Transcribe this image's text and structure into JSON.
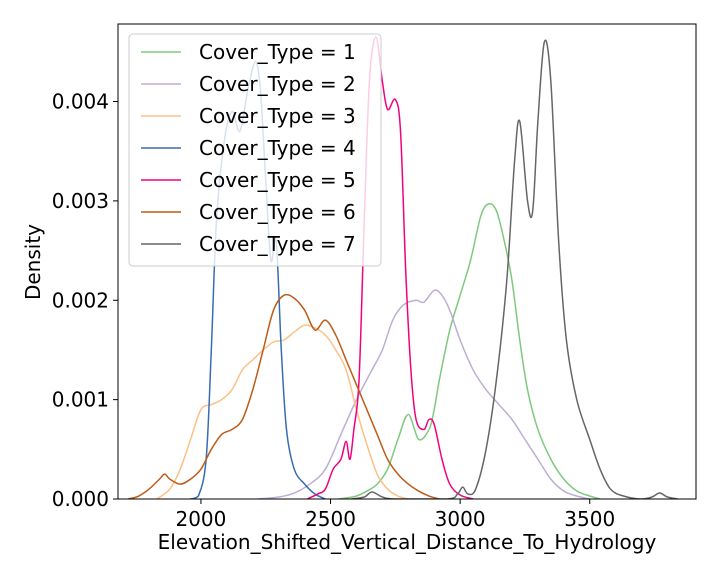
{
  "chart_data": {
    "type": "line",
    "chart_kind": "kde-density",
    "xlabel": "Elevation_Shifted_Vertical_Distance_To_Hydrology",
    "ylabel": "Density",
    "xlim": [
      1680,
      3910
    ],
    "ylim": [
      0,
      0.00478
    ],
    "xticks": [
      2000,
      2500,
      3000,
      3500
    ],
    "yticks": [
      0.0,
      0.001,
      0.002,
      0.003,
      0.004
    ],
    "xtick_labels": [
      "2000",
      "2500",
      "3000",
      "3500"
    ],
    "ytick_labels": [
      "0.000",
      "0.001",
      "0.002",
      "0.003",
      "0.004"
    ],
    "grid": false,
    "legend_position": "top-left",
    "series": [
      {
        "name": "Cover_Type = 1",
        "color": "#7fc97f",
        "points": [
          [
            2530,
            0
          ],
          [
            2560,
            1e-05
          ],
          [
            2600,
            3e-05
          ],
          [
            2640,
            8e-05
          ],
          [
            2680,
            0.00015
          ],
          [
            2720,
            0.0003
          ],
          [
            2760,
            0.0006
          ],
          [
            2800,
            0.00085
          ],
          [
            2840,
            0.0006
          ],
          [
            2880,
            0.0007
          ],
          [
            2900,
            0.0009
          ],
          [
            2920,
            0.0012
          ],
          [
            2960,
            0.0017
          ],
          [
            3000,
            0.00205
          ],
          [
            3040,
            0.0024
          ],
          [
            3080,
            0.00285
          ],
          [
            3110,
            0.00297
          ],
          [
            3140,
            0.0029
          ],
          [
            3170,
            0.0026
          ],
          [
            3200,
            0.0022
          ],
          [
            3230,
            0.0016
          ],
          [
            3260,
            0.0011
          ],
          [
            3300,
            0.0007
          ],
          [
            3350,
            0.0004
          ],
          [
            3400,
            0.0002
          ],
          [
            3450,
            8e-05
          ],
          [
            3500,
            3e-05
          ],
          [
            3540,
            0
          ]
        ]
      },
      {
        "name": "Cover_Type = 2",
        "color": "#beaed4",
        "points": [
          [
            2220,
            0
          ],
          [
            2300,
            2e-05
          ],
          [
            2360,
            6e-05
          ],
          [
            2420,
            0.00015
          ],
          [
            2480,
            0.0003
          ],
          [
            2540,
            0.00065
          ],
          [
            2600,
            0.001
          ],
          [
            2660,
            0.0013
          ],
          [
            2700,
            0.0015
          ],
          [
            2740,
            0.0018
          ],
          [
            2780,
            0.00195
          ],
          [
            2830,
            0.002
          ],
          [
            2860,
            0.00198
          ],
          [
            2900,
            0.0021
          ],
          [
            2930,
            0.00205
          ],
          [
            2960,
            0.0019
          ],
          [
            3000,
            0.0016
          ],
          [
            3050,
            0.0013
          ],
          [
            3100,
            0.0011
          ],
          [
            3150,
            0.00095
          ],
          [
            3200,
            0.0008
          ],
          [
            3250,
            0.0006
          ],
          [
            3300,
            0.0004
          ],
          [
            3350,
            0.0002
          ],
          [
            3400,
            8e-05
          ],
          [
            3450,
            3e-05
          ],
          [
            3500,
            0
          ]
        ]
      },
      {
        "name": "Cover_Type = 3",
        "color": "#fdc086",
        "points": [
          [
            1830,
            0
          ],
          [
            1880,
            0.0001
          ],
          [
            1920,
            0.0003
          ],
          [
            1960,
            0.0006
          ],
          [
            2000,
            0.0009
          ],
          [
            2040,
            0.00095
          ],
          [
            2080,
            0.001
          ],
          [
            2120,
            0.0011
          ],
          [
            2160,
            0.0013
          ],
          [
            2200,
            0.0014
          ],
          [
            2240,
            0.0015
          ],
          [
            2280,
            0.00158
          ],
          [
            2320,
            0.0016
          ],
          [
            2360,
            0.00168
          ],
          [
            2400,
            0.00175
          ],
          [
            2440,
            0.00172
          ],
          [
            2480,
            0.00165
          ],
          [
            2520,
            0.0015
          ],
          [
            2560,
            0.0013
          ],
          [
            2600,
            0.0009
          ],
          [
            2640,
            0.00055
          ],
          [
            2680,
            0.00025
          ],
          [
            2720,
            0.0001
          ],
          [
            2760,
            3e-05
          ],
          [
            2800,
            0
          ]
        ]
      },
      {
        "name": "Cover_Type = 4",
        "color": "#386cb0",
        "points": [
          [
            1960,
            0
          ],
          [
            1990,
            3e-05
          ],
          [
            2020,
            0.0004
          ],
          [
            2040,
            0.0015
          ],
          [
            2060,
            0.0028
          ],
          [
            2090,
            0.0036
          ],
          [
            2120,
            0.0039
          ],
          [
            2150,
            0.0037
          ],
          [
            2180,
            0.0041
          ],
          [
            2210,
            0.0044
          ],
          [
            2230,
            0.0041
          ],
          [
            2250,
            0.0032
          ],
          [
            2270,
            0.0024
          ],
          [
            2290,
            0.0026
          ],
          [
            2310,
            0.0015
          ],
          [
            2330,
            0.0007
          ],
          [
            2360,
            0.0003
          ],
          [
            2400,
            0.00015
          ],
          [
            2440,
            5e-05
          ],
          [
            2480,
            0
          ]
        ]
      },
      {
        "name": "Cover_Type = 5",
        "color": "#f0027f",
        "points": [
          [
            2410,
            0
          ],
          [
            2450,
            5e-05
          ],
          [
            2480,
            0.0001
          ],
          [
            2510,
            0.0003
          ],
          [
            2540,
            0.0004
          ],
          [
            2560,
            0.00058
          ],
          [
            2575,
            0.0004
          ],
          [
            2590,
            0.0007
          ],
          [
            2610,
            0.0012
          ],
          [
            2630,
            0.0028
          ],
          [
            2650,
            0.0042
          ],
          [
            2675,
            0.00465
          ],
          [
            2700,
            0.0042
          ],
          [
            2720,
            0.00392
          ],
          [
            2750,
            0.00402
          ],
          [
            2770,
            0.0037
          ],
          [
            2790,
            0.0023
          ],
          [
            2810,
            0.0013
          ],
          [
            2830,
            0.0008
          ],
          [
            2860,
            0.0007
          ],
          [
            2880,
            0.0008
          ],
          [
            2900,
            0.00075
          ],
          [
            2930,
            0.0004
          ],
          [
            2960,
            0.00015
          ],
          [
            3000,
            4e-05
          ],
          [
            3050,
            0
          ]
        ]
      },
      {
        "name": "Cover_Type = 6",
        "color": "#bf5b17",
        "points": [
          [
            1720,
            0
          ],
          [
            1760,
            3e-05
          ],
          [
            1800,
            0.0001
          ],
          [
            1840,
            0.0002
          ],
          [
            1860,
            0.00025
          ],
          [
            1880,
            0.0002
          ],
          [
            1920,
            0.00015
          ],
          [
            1960,
            0.0002
          ],
          [
            2000,
            0.0003
          ],
          [
            2040,
            0.0005
          ],
          [
            2080,
            0.00065
          ],
          [
            2120,
            0.0007
          ],
          [
            2160,
            0.0008
          ],
          [
            2200,
            0.0011
          ],
          [
            2240,
            0.0015
          ],
          [
            2280,
            0.0019
          ],
          [
            2320,
            0.00205
          ],
          [
            2360,
            0.00202
          ],
          [
            2400,
            0.0019
          ],
          [
            2440,
            0.0017
          ],
          [
            2480,
            0.0018
          ],
          [
            2520,
            0.00165
          ],
          [
            2560,
            0.0014
          ],
          [
            2600,
            0.00115
          ],
          [
            2640,
            0.0009
          ],
          [
            2680,
            0.00065
          ],
          [
            2720,
            0.0004
          ],
          [
            2760,
            0.00025
          ],
          [
            2800,
            0.00015
          ],
          [
            2840,
            8e-05
          ],
          [
            2880,
            3e-05
          ],
          [
            2920,
            0
          ]
        ]
      },
      {
        "name": "Cover_Type = 7",
        "color": "#666666",
        "points": [
          [
            2580,
            0
          ],
          [
            2630,
            2e-05
          ],
          [
            2660,
            7e-05
          ],
          [
            2700,
            2e-05
          ],
          [
            2750,
            0
          ],
          [
            2950,
            0
          ],
          [
            2990,
            5e-05
          ],
          [
            3010,
            0.00012
          ],
          [
            3030,
            5e-05
          ],
          [
            3060,
            0.0001
          ],
          [
            3100,
            0.0005
          ],
          [
            3140,
            0.0012
          ],
          [
            3180,
            0.0022
          ],
          [
            3210,
            0.0034
          ],
          [
            3230,
            0.0038
          ],
          [
            3260,
            0.003
          ],
          [
            3280,
            0.0029
          ],
          [
            3300,
            0.0038
          ],
          [
            3325,
            0.0046
          ],
          [
            3350,
            0.0042
          ],
          [
            3380,
            0.0026
          ],
          [
            3410,
            0.0016
          ],
          [
            3450,
            0.001
          ],
          [
            3500,
            0.0006
          ],
          [
            3540,
            0.0003
          ],
          [
            3580,
            0.0001
          ],
          [
            3630,
            3e-05
          ],
          [
            3700,
            0
          ],
          [
            3740,
            2e-05
          ],
          [
            3770,
            6e-05
          ],
          [
            3800,
            2e-05
          ],
          [
            3840,
            0
          ]
        ]
      }
    ]
  }
}
